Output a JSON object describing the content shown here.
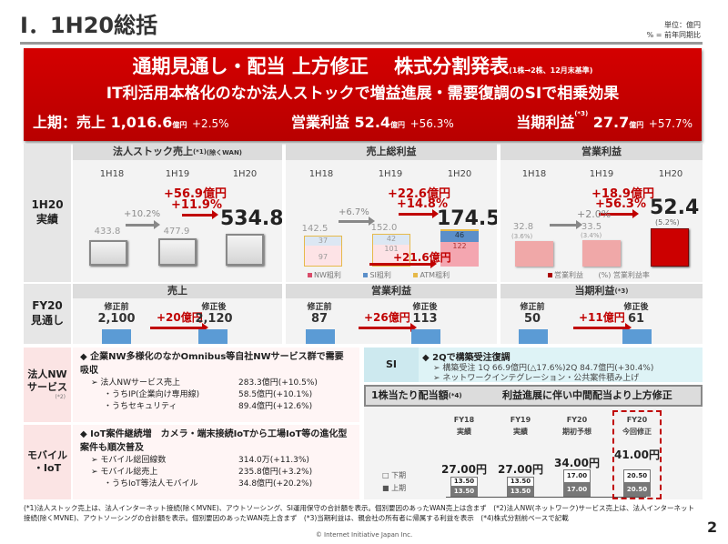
{
  "title": "Ⅰ．1H20総括",
  "unit": {
    "line1": "単位：億円",
    "line2": "% = 前年同期比"
  },
  "banner": {
    "headline": "通期見通し・配当 上方修正　 株式分割発表",
    "headline_note": "(1株→2株、12月末基準)",
    "subhead": "IT利活用本格化のなか法人ストックで増益進展・需要復調のSIで相乗効果",
    "kpis": [
      {
        "label": "上期：売上",
        "value": "1,016.6",
        "unit": "億円",
        "pct": "+2.5%"
      },
      {
        "label": "営業利益",
        "value": "52.4",
        "unit": "億円",
        "pct": "+56.3%"
      },
      {
        "label": "当期利益",
        "sup": "(*3)",
        "value": "27.7",
        "unit": "億円",
        "pct": "+57.7%"
      }
    ]
  },
  "rows": {
    "r1": "1H20\n実績",
    "r2": "FY20\n見通し"
  },
  "years": [
    "1H18",
    "1H19",
    "1H20"
  ],
  "stock": {
    "title": "法人ストック売上",
    "sup": "(*1)",
    "note": "(除くWAN)",
    "values": [
      "433.8",
      "477.9",
      "534.8"
    ],
    "growth_prev": "+10.2%",
    "diff": "+56.9億円",
    "pct": "+11.9%"
  },
  "gross": {
    "title": "売上総利益",
    "values": [
      "142.5",
      "152.0",
      "174.5"
    ],
    "nw": [
      "97",
      "101",
      "122"
    ],
    "si": [
      "37",
      "42",
      "46"
    ],
    "growth_prev": "+6.7%",
    "diff": "+22.6億円",
    "pct": "+14.8%",
    "nw_diff": "+21.6億円",
    "legend": [
      "NW粗利",
      "SI粗利",
      "ATM粗利"
    ],
    "colors": {
      "nw": "#f4a6b0",
      "si": "#9dc3e6",
      "atm": "#e6b94a"
    }
  },
  "opinc": {
    "title": "営業利益",
    "values": [
      "32.8",
      "33.5",
      "52.4"
    ],
    "margins": [
      "(3.6%)",
      "(3.4%)",
      "(5.2%)"
    ],
    "growth_prev": "+2.0%",
    "diff": "+18.9億円",
    "pct": "+56.3%",
    "legend": [
      "営業利益",
      "(%) 営業利益率"
    ]
  },
  "forecast": [
    {
      "title": "売上",
      "before_label": "修正前",
      "before": "2,100",
      "after_label": "修正後",
      "after": "2,120",
      "diff": "+20億円"
    },
    {
      "title": "営業利益",
      "before_label": "修正前",
      "before": "87",
      "after_label": "修正後",
      "after": "113",
      "diff": "+26億円"
    },
    {
      "title": "当期利益",
      "sup": "(*3)",
      "before_label": "修正前",
      "before": "50",
      "after_label": "修正後",
      "after": "61",
      "diff": "+11億円"
    }
  ],
  "nw": {
    "label": "法人NW\nサービス",
    "sup": "(*2)",
    "headline": "◆ 企業NW多様化のなかOmnibus等自社NWサービス群で需要吸収",
    "items": [
      [
        "➢ 法人NWサービス売上",
        "283.3億円(+10.5%)"
      ],
      [
        "・うちIP(企業向け専用線)",
        "58.5億円(+10.1%)"
      ],
      [
        "・うちセキュリティ",
        "89.4億円(+12.6%)"
      ]
    ]
  },
  "mobile": {
    "label": "モバイル\n・IoT",
    "headline": "◆ IoT案件継続増　カメラ・端末接続IoTから工場IoT等の進化型案件も順次普及",
    "items": [
      [
        "➢ モバイル総回線数",
        "314.0万(+11.3%)"
      ],
      [
        "➢ モバイル総売上",
        "235.8億円(+3.2%)"
      ],
      [
        "・うちIoT等法人モバイル",
        "34.8億円(+20.2%)"
      ]
    ]
  },
  "si": {
    "label": "SI",
    "headline": "◆ 2Qで構築受注復調",
    "items": [
      "➢ 構築受注 1Q 66.9億円(△17.6%)2Q 84.7億円(+30.4%)",
      "➢ ネットワークインテグレーション・公共案件積み上げ"
    ]
  },
  "dividend": {
    "title": "1株当たり配当額",
    "sup": "(*4)",
    "message": "利益進展に伴い中間配当より上方修正",
    "legend": [
      "□ 下期",
      "■ 上期"
    ],
    "cols": [
      {
        "year": "FY18",
        "label": "実績",
        "total": "27.00円",
        "h1": "13.50",
        "h2": "13.50"
      },
      {
        "year": "FY19",
        "label": "実績",
        "total": "27.00円",
        "h1": "13.50",
        "h2": "13.50"
      },
      {
        "year": "FY20",
        "label": "期初予想",
        "total": "34.00円",
        "h1": "17.00",
        "h2": "17.00"
      },
      {
        "year": "FY20",
        "label": "今回修正",
        "total": "41.00円",
        "h1": "20.50",
        "h2": "20.50"
      }
    ]
  },
  "footnote": "(*1)法人ストック売上は、法人インターネット接続(除くMVNE)、アウトソーシング、SI運用保守の合計額を表示。個別要因のあったWAN売上は含まず　(*2)法人NW(ネットワーク)サービス売上は、法人インターネット接続(除くMVNE)、アウトソーシングの合計額を表示。個別要因のあったWAN売上含まず　(*3)当期利益は、親会社の所有者に帰属する利益を表示　(*4)株式分割前ベースで記載",
  "copyright": "© Internet Initiative Japan Inc.",
  "page": "2"
}
